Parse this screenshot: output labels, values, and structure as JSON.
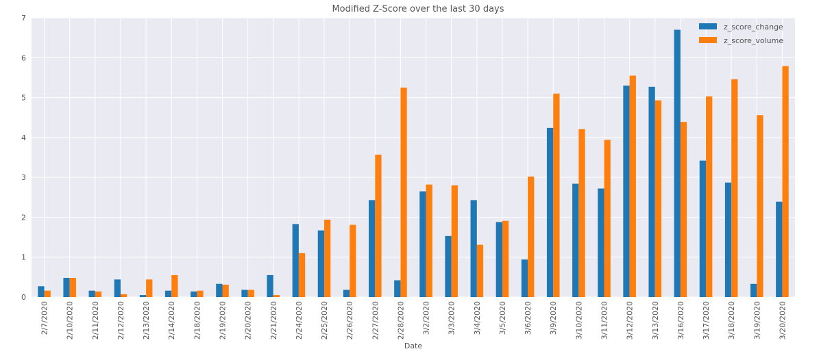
{
  "chart_data": {
    "type": "bar",
    "title": "Modified Z-Score over the last 30 days",
    "xlabel": "Date",
    "ylabel": "",
    "ylim": [
      0,
      7
    ],
    "yticks": [
      0,
      1,
      2,
      3,
      4,
      5,
      6,
      7
    ],
    "grid": true,
    "legend_position": "top-right",
    "categories": [
      "2/7/2020",
      "2/10/2020",
      "2/11/2020",
      "2/12/2020",
      "2/13/2020",
      "2/14/2020",
      "2/18/2020",
      "2/19/2020",
      "2/20/2020",
      "2/21/2020",
      "2/24/2020",
      "2/25/2020",
      "2/26/2020",
      "2/27/2020",
      "2/28/2020",
      "3/2/2020",
      "3/3/2020",
      "3/4/2020",
      "3/5/2020",
      "3/6/2020",
      "3/9/2020",
      "3/10/2020",
      "3/11/2020",
      "3/12/2020",
      "3/13/2020",
      "3/16/2020",
      "3/17/2020",
      "3/18/2020",
      "3/19/2020",
      "3/20/2020"
    ],
    "series": [
      {
        "name": "z_score_change",
        "color": "#1f77b4",
        "values": [
          0.27,
          0.48,
          0.16,
          0.44,
          0.05,
          0.16,
          0.14,
          0.33,
          0.18,
          0.55,
          1.83,
          1.67,
          0.18,
          2.43,
          0.42,
          2.65,
          1.53,
          2.43,
          1.88,
          0.94,
          4.24,
          2.84,
          2.72,
          5.3,
          5.27,
          6.7,
          3.42,
          2.87,
          0.33,
          2.39
        ]
      },
      {
        "name": "z_score_volume",
        "color": "#ff7f0e",
        "values": [
          0.16,
          0.48,
          0.14,
          0.07,
          0.44,
          0.55,
          0.16,
          0.31,
          0.18,
          0.05,
          1.1,
          1.94,
          1.81,
          3.57,
          5.25,
          2.82,
          2.8,
          1.31,
          1.91,
          3.02,
          5.1,
          4.21,
          3.94,
          5.55,
          4.93,
          4.39,
          5.03,
          5.46,
          4.56,
          5.79
        ]
      }
    ]
  },
  "style": {
    "plot_bg": "#eaeaf2",
    "grid_color": "#ffffff",
    "text_color": "#555555"
  }
}
